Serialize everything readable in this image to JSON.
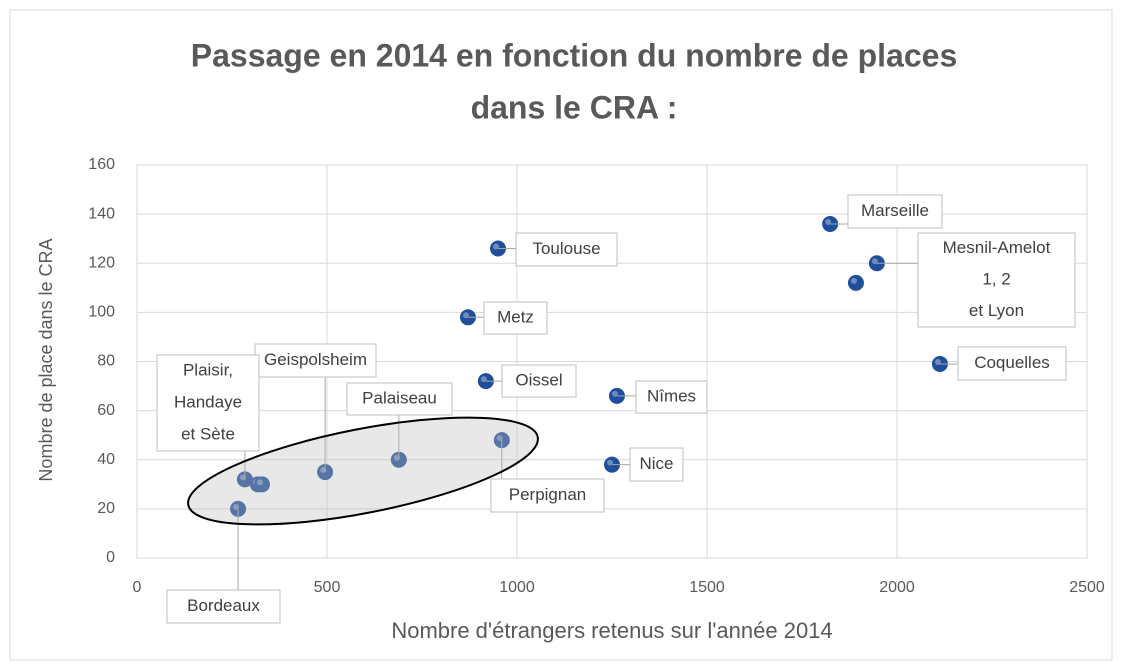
{
  "chart_data": {
    "type": "scatter",
    "title": [
      "Passage en 2014 en fonction du nombre de places",
      "dans le CRA :"
    ],
    "x_label": "Nombre d'étrangers retenus sur l'année 2014",
    "y_label": "Nombre de place dans le CRA",
    "xlim": [
      0,
      2500
    ],
    "xticks": [
      0,
      500,
      1000,
      1500,
      2000,
      2500
    ],
    "ylim": [
      0,
      160
    ],
    "yticks": [
      0,
      20,
      40,
      60,
      80,
      100,
      120,
      140,
      160
    ],
    "grid": true,
    "series": [
      {
        "color": "#1f4e9a",
        "x": [
          1824,
          1947,
          1892,
          950,
          871,
          2113,
          918,
          1263,
          1250,
          960,
          689,
          495,
          284,
          318,
          329,
          266
        ],
        "values": [
          136,
          120,
          112,
          126,
          98,
          79,
          72,
          66,
          38,
          48,
          40,
          35,
          32,
          30,
          30,
          20
        ],
        "point_labels": [
          [
            "Marseille"
          ],
          [
            "Mesnil-Amelot",
            "1, 2",
            "et Lyon"
          ],
          null,
          [
            "Toulouse"
          ],
          [
            "Metz"
          ],
          [
            "Coquelles"
          ],
          [
            "Oissel"
          ],
          [
            "Nîmes"
          ],
          [
            "Nice"
          ],
          [
            "Perpignan"
          ],
          [
            "Palaiseau"
          ],
          [
            "Geispolsheim"
          ],
          [
            "Plaisir,",
            "Handaye",
            "et Sète"
          ],
          null,
          null,
          [
            "Bordeaux"
          ]
        ]
      }
    ]
  }
}
